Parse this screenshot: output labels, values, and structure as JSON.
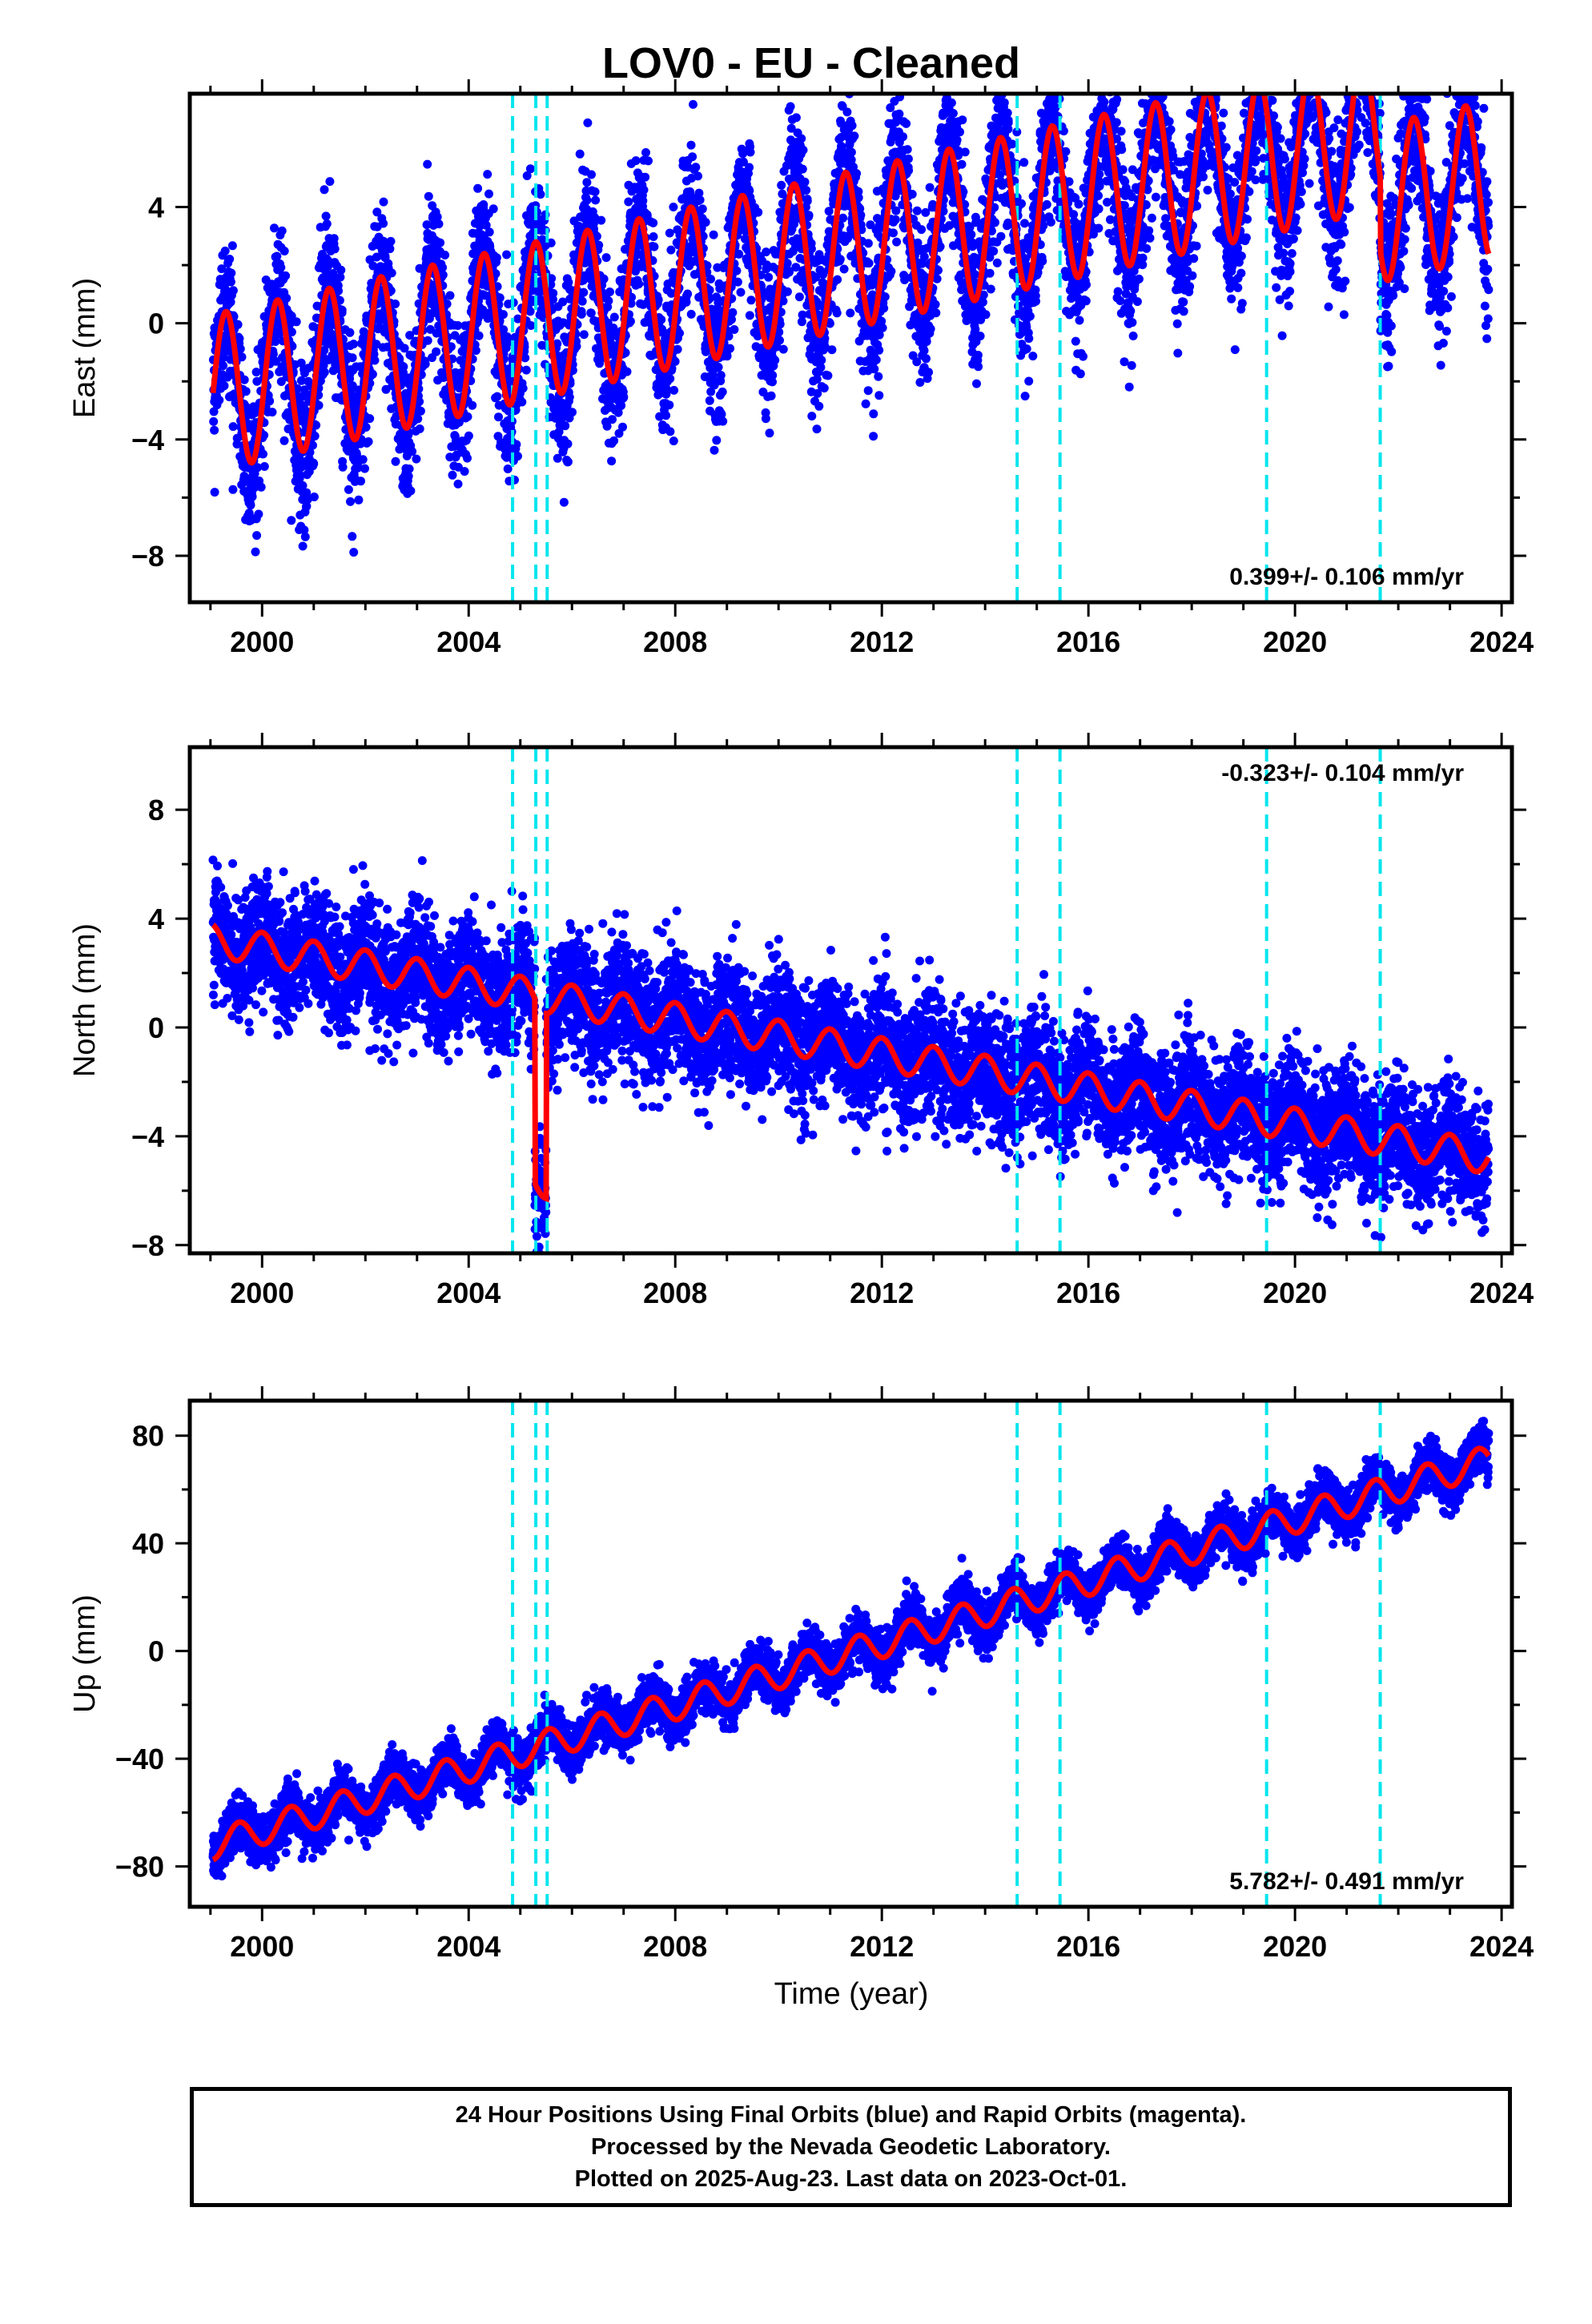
{
  "title": "LOV0  - EU - Cleaned",
  "xlabel": "Time (year)",
  "x_ticks": [
    "2000",
    "2004",
    "2008",
    "2012",
    "2016",
    "2020",
    "2024"
  ],
  "colors": {
    "data": "#0000ff",
    "model": "#ff0000",
    "steps": "#00e5ee"
  },
  "footer": {
    "line1": "24 Hour Positions Using Final Orbits (blue) and Rapid Orbits (magenta).",
    "line2": "Processed by the Nevada Geodetic Laboratory.",
    "line3": "Plotted on 2025-Aug-23. Last data on 2023-Oct-01."
  },
  "chart_data": [
    {
      "type": "scatter",
      "ylabel": "East (mm)",
      "xlim": [
        1998.6,
        2024.2
      ],
      "ylim": [
        -9.6,
        7.9
      ],
      "y_ticks": [
        -8,
        -4,
        0,
        4
      ],
      "step_lines_x": [
        2004.85,
        2005.3,
        2005.52,
        2014.62,
        2015.45,
        2019.45,
        2021.65
      ],
      "rate_text": "0.399+/- 0.106 mm/yr",
      "rate_position": "bottom-right",
      "data_start": 1999.05,
      "data_end": 2023.75,
      "model": {
        "offset_at_start": -2.4,
        "trend_mm_per_yr": 0.399,
        "annual_amplitude": 2.7,
        "annual_phase_year": 1999.3,
        "steps": [
          [
            2021.65,
            -2.5
          ]
        ]
      },
      "scatter_noise_mm": 1.3
    },
    {
      "type": "scatter",
      "ylabel": "North (mm)",
      "xlim": [
        1998.6,
        2024.2
      ],
      "ylim": [
        -8.3,
        10.3
      ],
      "y_ticks": [
        -8,
        -4,
        0,
        4,
        8
      ],
      "step_lines_x": [
        2004.85,
        2005.3,
        2005.52,
        2014.62,
        2015.45,
        2019.45,
        2021.65
      ],
      "rate_text": "-0.323+/- 0.104 mm/yr",
      "rate_position": "top-right",
      "data_start": 1999.05,
      "data_end": 2023.75,
      "model": {
        "offset_at_start": 3.2,
        "trend_mm_per_yr": -0.323,
        "annual_amplitude": 0.6,
        "annual_phase_year": 1999.0,
        "transient": [
          2005.28,
          2005.5,
          -6.8
        ]
      },
      "scatter_noise_mm": 1.1
    },
    {
      "type": "scatter",
      "ylabel": "Up (mm)",
      "xlim": [
        1998.6,
        2024.2
      ],
      "ylim": [
        -95,
        93
      ],
      "y_ticks": [
        -80,
        -40,
        0,
        40,
        80
      ],
      "step_lines_x": [
        2004.85,
        2005.3,
        2005.52,
        2014.62,
        2015.45,
        2019.45,
        2021.65
      ],
      "rate_text": "5.782+/- 0.491 mm/yr",
      "rate_position": "bottom-right",
      "data_start": 1999.05,
      "data_end": 2023.75,
      "model": {
        "offset_at_start": -72,
        "trend_mm_per_yr": 5.782,
        "annual_amplitude": 5.5,
        "annual_phase_year": 1999.55
      },
      "scatter_noise_mm": 4.5
    }
  ]
}
